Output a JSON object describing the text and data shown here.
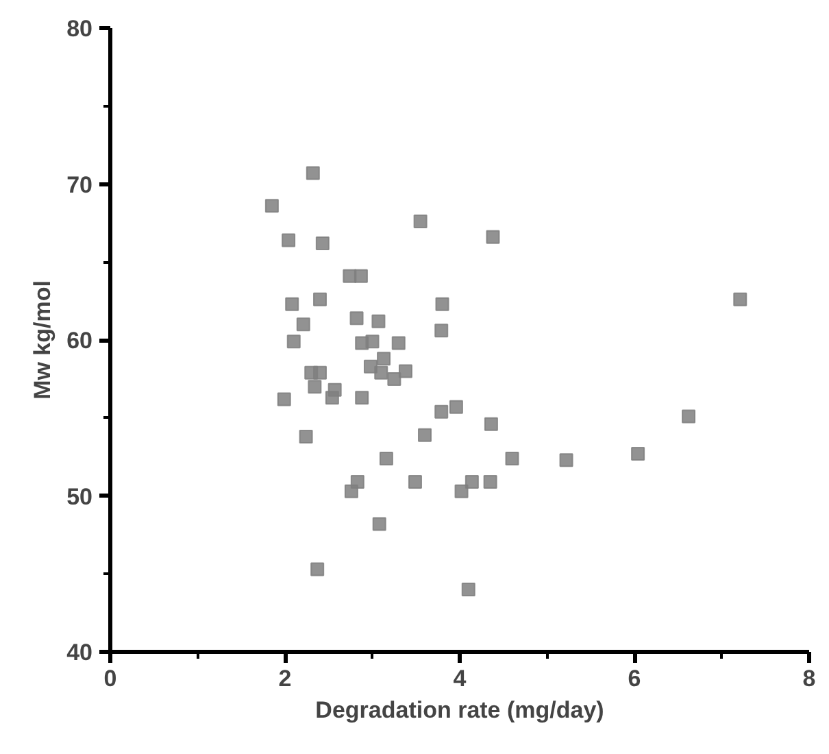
{
  "chart_data": {
    "type": "scatter",
    "xlabel": "Degradation rate (mg/day)",
    "ylabel": "Mw kg/mol",
    "marker": "square",
    "grid": false,
    "xlim": [
      0,
      8
    ],
    "xticks": [
      0,
      2,
      4,
      6,
      8
    ],
    "ylim": [
      40,
      80
    ],
    "yticks": [
      40,
      50,
      60,
      70,
      80
    ],
    "series": [
      {
        "color": "#7f7f7f",
        "x": [
          1.85,
          2.32,
          2.04,
          2.43,
          3.55,
          4.38,
          2.74,
          2.87,
          2.08,
          2.4,
          2.82,
          3.07,
          3.8,
          2.21,
          2.1,
          2.88,
          3.0,
          3.3,
          3.79,
          3.13,
          2.98,
          3.1,
          3.25,
          3.38,
          2.3,
          2.4,
          2.34,
          2.57,
          2.54,
          1.99,
          2.88,
          3.79,
          3.96,
          4.36,
          3.6,
          2.24,
          3.16,
          4.6,
          5.22,
          6.04,
          6.62,
          7.21,
          2.76,
          2.83,
          3.49,
          4.02,
          4.14,
          4.35,
          3.08,
          2.37,
          4.1
        ],
        "values": [
          68.6,
          70.7,
          66.4,
          66.2,
          67.6,
          66.6,
          64.1,
          64.1,
          62.3,
          62.6,
          61.4,
          61.2,
          62.3,
          61.0,
          59.9,
          59.8,
          59.9,
          59.8,
          60.6,
          58.8,
          58.3,
          57.9,
          57.5,
          58.0,
          57.9,
          57.9,
          57.0,
          56.8,
          56.3,
          56.2,
          56.3,
          55.4,
          55.7,
          54.6,
          53.9,
          53.8,
          52.4,
          52.4,
          52.3,
          52.7,
          55.1,
          62.6,
          50.3,
          50.9,
          50.9,
          50.3,
          50.9,
          50.9,
          48.2,
          45.3,
          44.0
        ]
      }
    ]
  }
}
